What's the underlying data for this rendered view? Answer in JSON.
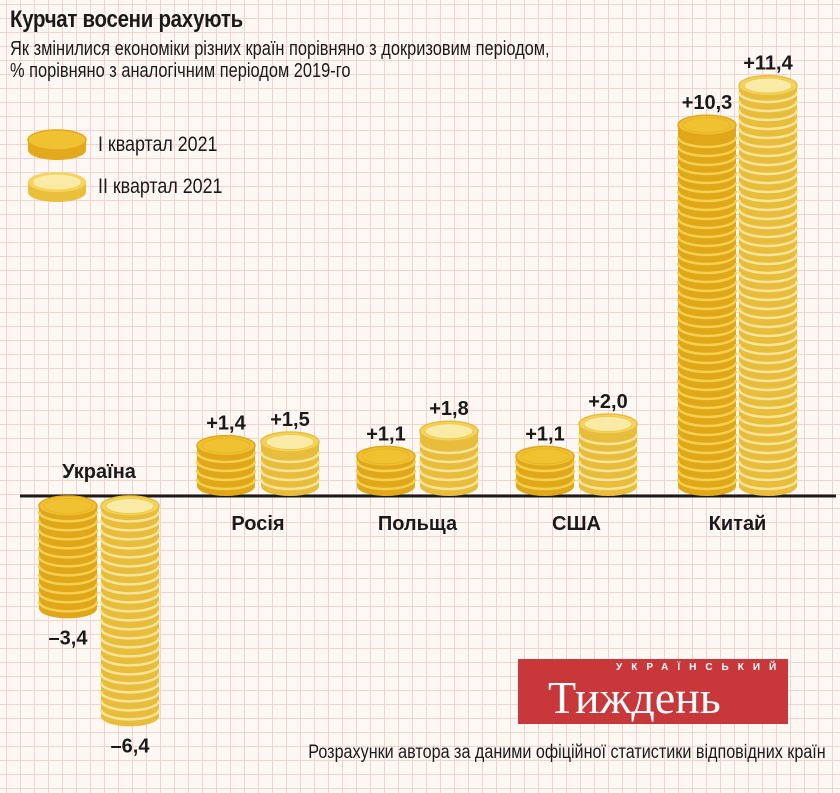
{
  "chart_data": {
    "type": "bar",
    "title": "Курчат восени рахують",
    "subtitle": [
      "Як змінилися економіки різних країн порівняно з докризовим періодом,",
      "% порівняно з аналогічним періодом 2019-го"
    ],
    "categories": [
      "Україна",
      "Росія",
      "Польща",
      "США",
      "Китай"
    ],
    "series": [
      {
        "name": "I квартал 2021",
        "values": [
          -3.4,
          1.4,
          1.1,
          1.1,
          10.3
        ],
        "labels": [
          "–3,4",
          "+1,4",
          "+1,1",
          "+1,1",
          "+10,3"
        ],
        "color": "#f0c232"
      },
      {
        "name": "II квартал 2021",
        "values": [
          -6.4,
          1.5,
          1.8,
          2.0,
          11.4
        ],
        "labels": [
          "–6,4",
          "+1,5",
          "+1,8",
          "+2,0",
          "+11,4"
        ],
        "color": "#f7e08a"
      }
    ],
    "legend": "top-left",
    "grid": false
  },
  "source": "Розрахунки автора за даними офіційної статистики відповідних країн",
  "logo": {
    "small": "УКРАЇНСЬКИЙ",
    "big": "Тиждень"
  }
}
